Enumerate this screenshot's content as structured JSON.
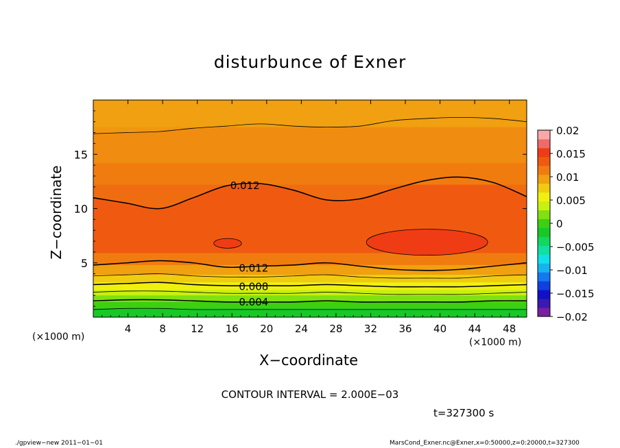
{
  "title": "disturbunce of Exner",
  "xlabel": "X−coordinate",
  "ylabel": "Z−coordinate",
  "x_unit": "(×1000 m)",
  "contour_interval": "CONTOUR INTERVAL = 2.000E−03",
  "time": "t=327300 s",
  "footer_left": "./gpview−new   2011−01−01",
  "footer_right": "MarsCond_Exner.nc@Exner,x=0:50000,z=0:20000,t=327300",
  "chart_data": {
    "type": "heatmap",
    "title": "disturbunce of Exner",
    "xlabel": "X−coordinate",
    "ylabel": "Z−coordinate",
    "x_unit": "(×1000 m)",
    "xlim": [
      0,
      50
    ],
    "ylim": [
      0,
      20
    ],
    "x_ticks": [
      4,
      8,
      12,
      16,
      20,
      24,
      28,
      32,
      36,
      40,
      44,
      48
    ],
    "y_ticks": [
      5,
      10,
      15
    ],
    "contour_labels": [
      {
        "text": "0.012",
        "x": 17.5,
        "y": 12.1
      },
      {
        "text": "0.012",
        "x": 18.5,
        "y": 4.5
      },
      {
        "text": "0.008",
        "x": 18.5,
        "y": 2.8
      },
      {
        "text": "0.004",
        "x": 18.5,
        "y": 1.4
      }
    ],
    "colorbar": {
      "ticks": [
        "0.02",
        "0.015",
        "0.01",
        "0.005",
        "0",
        "−0.005",
        "−0.01",
        "−0.015",
        "−0.02"
      ],
      "levels": [
        -0.02,
        -0.018,
        -0.016,
        -0.014,
        -0.012,
        -0.01,
        -0.008,
        -0.006,
        -0.004,
        -0.002,
        0,
        0.002,
        0.004,
        0.006,
        0.008,
        0.01,
        0.012,
        0.014,
        0.016,
        0.018,
        0.02
      ],
      "colors": [
        "#7a1fa0",
        "#3a1ab0",
        "#1010c8",
        "#1040e0",
        "#1478f0",
        "#14b4f0",
        "#10e0e8",
        "#10e0a0",
        "#10d860",
        "#18c828",
        "#3cd010",
        "#80e010",
        "#c8f010",
        "#f0f010",
        "#f0cc10",
        "#f0a010",
        "#f07c10",
        "#f05a10",
        "#f03c14",
        "#f06a6a",
        "#f8a8a8"
      ]
    },
    "bands": [
      {
        "lower_z": 0.0,
        "color": "#18c828"
      },
      {
        "lower_z": 0.8,
        "color": "#3cd010"
      },
      {
        "lower_z": 1.4,
        "color": "#80e010"
      },
      {
        "lower_z": 2.0,
        "color": "#c8f010"
      },
      {
        "lower_z": 2.5,
        "color": "#f0f010"
      },
      {
        "lower_z": 3.2,
        "color": "#f0cc10"
      },
      {
        "lower_z": 3.9,
        "color": "#f0a010"
      },
      {
        "lower_z": 4.8,
        "color": "#f07c10"
      },
      {
        "lower_z": 5.9,
        "color": "#f05a10"
      },
      {
        "lower_z": 12.2,
        "color": "#f07c10"
      },
      {
        "lower_z": 14.2,
        "color": "#f0a010"
      },
      {
        "lower_z": 17.5,
        "color": "#f0cc10"
      }
    ],
    "upper_contours": [
      {
        "z": [
          16.9,
          17.0,
          17.1,
          17.4,
          17.6,
          17.8,
          17.6,
          17.5,
          17.6,
          18.1,
          18.3,
          18.4,
          18.3,
          18.0
        ],
        "bold": false
      },
      {
        "z": [
          11.0,
          10.5,
          10.0,
          11.0,
          12.1,
          12.3,
          11.7,
          10.8,
          10.9,
          11.8,
          12.6,
          12.9,
          12.4,
          11.1
        ],
        "bold": true
      }
    ],
    "lower_contours": [
      {
        "z": [
          4.8,
          5.0,
          5.2,
          5.0,
          4.6,
          4.7,
          4.8,
          5.0,
          4.7,
          4.4,
          4.3,
          4.4,
          4.7,
          5.0
        ],
        "bold": true
      },
      {
        "z": [
          3.8,
          3.9,
          4.0,
          3.8,
          3.7,
          3.7,
          3.8,
          3.9,
          3.7,
          3.6,
          3.6,
          3.6,
          3.8,
          3.9
        ],
        "bold": false
      },
      {
        "z": [
          3.0,
          3.1,
          3.2,
          3.0,
          2.9,
          2.9,
          2.9,
          3.0,
          2.9,
          2.8,
          2.8,
          2.8,
          2.9,
          3.0
        ],
        "bold": true
      },
      {
        "z": [
          2.3,
          2.4,
          2.4,
          2.3,
          2.2,
          2.2,
          2.2,
          2.3,
          2.2,
          2.1,
          2.1,
          2.1,
          2.2,
          2.3
        ],
        "bold": false
      },
      {
        "z": [
          1.5,
          1.6,
          1.6,
          1.5,
          1.4,
          1.4,
          1.4,
          1.5,
          1.4,
          1.4,
          1.4,
          1.4,
          1.5,
          1.5
        ],
        "bold": true
      },
      {
        "z": [
          0.7,
          0.8,
          0.8,
          0.7,
          0.7,
          0.7,
          0.7,
          0.7,
          0.7,
          0.7,
          0.7,
          0.7,
          0.7,
          0.7
        ],
        "bold": false
      }
    ],
    "maxima": [
      {
        "center": [
          38.5,
          6.9
        ],
        "radius": [
          7.0,
          1.2
        ],
        "color": "#f03c14"
      },
      {
        "center": [
          15.5,
          6.8
        ],
        "radius": [
          1.6,
          0.45
        ],
        "color": "#f03c14"
      }
    ]
  }
}
